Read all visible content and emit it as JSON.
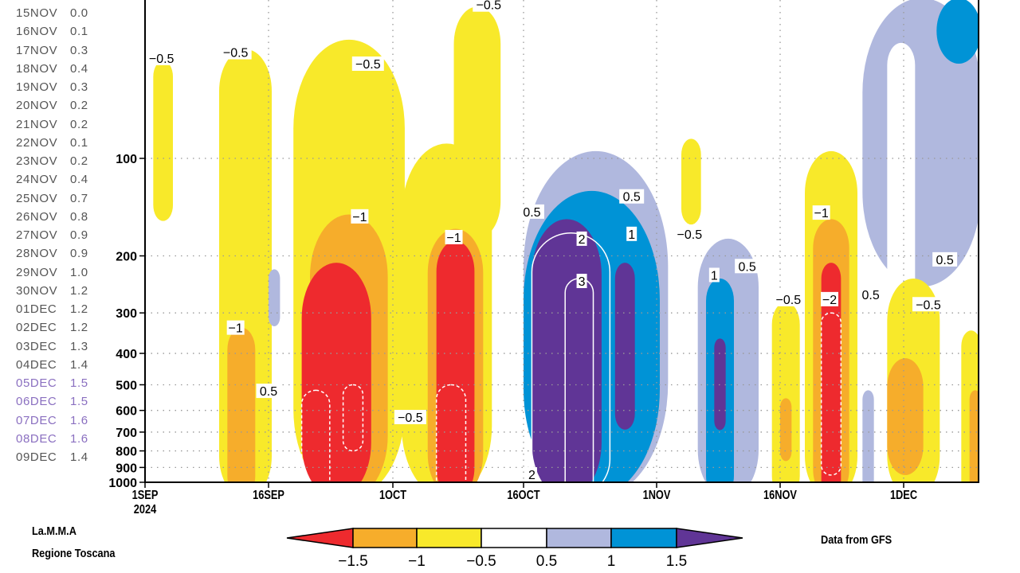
{
  "side_list": [
    {
      "date": "15NOV",
      "value": "0.0",
      "highlighted": false
    },
    {
      "date": "16NOV",
      "value": "0.1",
      "highlighted": false
    },
    {
      "date": "17NOV",
      "value": "0.3",
      "highlighted": false
    },
    {
      "date": "18NOV",
      "value": "0.4",
      "highlighted": false
    },
    {
      "date": "19NOV",
      "value": "0.3",
      "highlighted": false
    },
    {
      "date": "20NOV",
      "value": "0.2",
      "highlighted": false
    },
    {
      "date": "21NOV",
      "value": "0.2",
      "highlighted": false
    },
    {
      "date": "22NOV",
      "value": "0.1",
      "highlighted": false
    },
    {
      "date": "23NOV",
      "value": "0.2",
      "highlighted": false
    },
    {
      "date": "24NOV",
      "value": "0.4",
      "highlighted": false
    },
    {
      "date": "25NOV",
      "value": "0.7",
      "highlighted": false
    },
    {
      "date": "26NOV",
      "value": "0.8",
      "highlighted": false
    },
    {
      "date": "27NOV",
      "value": "0.9",
      "highlighted": false
    },
    {
      "date": "28NOV",
      "value": "0.9",
      "highlighted": false
    },
    {
      "date": "29NOV",
      "value": "1.0",
      "highlighted": false
    },
    {
      "date": "30NOV",
      "value": "1.2",
      "highlighted": false
    },
    {
      "date": "01DEC",
      "value": "1.2",
      "highlighted": false
    },
    {
      "date": "02DEC",
      "value": "1.2",
      "highlighted": false
    },
    {
      "date": "03DEC",
      "value": "1.3",
      "highlighted": false
    },
    {
      "date": "04DEC",
      "value": "1.4",
      "highlighted": false
    },
    {
      "date": "05DEC",
      "value": "1.5",
      "highlighted": true
    },
    {
      "date": "06DEC",
      "value": "1.5",
      "highlighted": true
    },
    {
      "date": "07DEC",
      "value": "1.6",
      "highlighted": true
    },
    {
      "date": "08DEC",
      "value": "1.6",
      "highlighted": true
    },
    {
      "date": "09DEC",
      "value": "1.4",
      "highlighted": false
    }
  ],
  "colors": {
    "highlight": "#8a6fc0",
    "normal": "#555555"
  },
  "footer": {
    "org_line1": "La.M.M.A",
    "org_line2": "Regione Toscana",
    "source": "Data from GFS"
  },
  "chart_data": {
    "type": "heatmap",
    "subtype": "filled-contour time-pressure cross-section",
    "x_axis": {
      "type": "date",
      "range": [
        "2024-09-01",
        "2024-12-10"
      ],
      "ticks": [
        {
          "date": "2024-09-01",
          "label": "1SEP",
          "sublabel": "2024"
        },
        {
          "date": "2024-09-16",
          "label": "16SEP"
        },
        {
          "date": "2024-10-01",
          "label": "1OCT"
        },
        {
          "date": "2024-10-16",
          "label": "16OCT"
        },
        {
          "date": "2024-11-01",
          "label": "1NOV"
        },
        {
          "date": "2024-11-16",
          "label": "16NOV"
        },
        {
          "date": "2024-12-01",
          "label": "1DEC"
        }
      ]
    },
    "y_axis": {
      "type": "log",
      "inverted": true,
      "unit": "hPa",
      "range": [
        32,
        1000
      ],
      "ticks": [
        100,
        200,
        300,
        400,
        500,
        600,
        700,
        800,
        900,
        1000
      ]
    },
    "grid": true,
    "levels": [
      {
        "key": "lt-1.5",
        "color": "#ee2a2e"
      },
      {
        "key": "-1.5..-1",
        "color": "#f6ad2b"
      },
      {
        "key": "-1..-0.5",
        "color": "#f8e92a"
      },
      {
        "key": "-0.5..0.5",
        "color": "#ffffff"
      },
      {
        "key": "0.5..1",
        "color": "#b0b8de"
      },
      {
        "key": "1..1.5",
        "color": "#0093d6"
      },
      {
        "key": "gt1.5",
        "color": "#603596"
      }
    ],
    "colorbar": {
      "labels": [
        "-1.5",
        "-1",
        "-0.5",
        "0.5",
        "1",
        "1.5"
      ],
      "placement": "bottom"
    },
    "regions": [
      {
        "level": "-1..-0.5",
        "start": "2024-09-02",
        "end": "2024-09-04",
        "p_top": 50,
        "p_bottom": 156
      },
      {
        "level": "-1..-0.5",
        "start": "2024-09-10",
        "end": "2024-09-16",
        "p_top": 46,
        "p_bottom": 1000
      },
      {
        "level": "0.5..1",
        "start": "2024-09-16",
        "end": "2024-09-17",
        "p_top": 220,
        "p_bottom": 330
      },
      {
        "level": "-1..-0.5",
        "start": "2024-09-19",
        "end": "2024-10-02",
        "p_top": 43,
        "p_bottom": 1000
      },
      {
        "level": "-1..-0.5",
        "start": "2024-10-02",
        "end": "2024-10-12",
        "p_top": 90,
        "p_bottom": 1000
      },
      {
        "level": "-1..-0.5",
        "start": "2024-10-08",
        "end": "2024-10-13",
        "p_top": 34,
        "p_bottom": 177
      },
      {
        "level": "-1.5..-1",
        "start": "2024-09-11",
        "end": "2024-09-14",
        "p_top": 333,
        "p_bottom": 1000
      },
      {
        "level": "-1.5..-1",
        "start": "2024-09-21",
        "end": "2024-09-30",
        "p_top": 149,
        "p_bottom": 1000
      },
      {
        "level": "-1.5..-1",
        "start": "2024-10-05",
        "end": "2024-10-11",
        "p_top": 165,
        "p_bottom": 1000
      },
      {
        "level": "lt-1.5",
        "start": "2024-09-20",
        "end": "2024-09-28",
        "p_top": 210,
        "p_bottom": 1000
      },
      {
        "level": "lt-1.5",
        "start": "2024-10-06",
        "end": "2024-10-10",
        "p_top": 180,
        "p_bottom": 1000
      },
      {
        "level": "0.5..1",
        "start": "2024-10-16",
        "end": "2024-11-02",
        "p_top": 95,
        "p_bottom": 1000
      },
      {
        "level": "1..1.5",
        "start": "2024-10-16",
        "end": "2024-11-01",
        "p_top": 126,
        "p_bottom": 1000
      },
      {
        "level": "gt1.5",
        "start": "2024-10-17",
        "end": "2024-10-25",
        "p_top": 154,
        "p_bottom": 1000
      },
      {
        "level": "gt1.5",
        "start": "2024-10-27",
        "end": "2024-10-29",
        "p_top": 210,
        "p_bottom": 688
      },
      {
        "level": "-1..-0.5",
        "start": "2024-11-04",
        "end": "2024-11-06",
        "p_top": 87,
        "p_bottom": 160
      },
      {
        "level": "0.5..1",
        "start": "2024-11-06",
        "end": "2024-11-13",
        "p_top": 177,
        "p_bottom": 1000
      },
      {
        "level": "1..1.5",
        "start": "2024-11-07",
        "end": "2024-11-10",
        "p_top": 235,
        "p_bottom": 1000
      },
      {
        "level": "gt1.5",
        "start": "2024-11-08",
        "end": "2024-11-09",
        "p_top": 360,
        "p_bottom": 690
      },
      {
        "level": "-1..-0.5",
        "start": "2024-11-15",
        "end": "2024-11-18",
        "p_top": 278,
        "p_bottom": 1000
      },
      {
        "level": "-1.5..-1",
        "start": "2024-11-16",
        "end": "2024-11-17",
        "p_top": 550,
        "p_bottom": 860
      },
      {
        "level": "-1..-0.5",
        "start": "2024-11-19",
        "end": "2024-11-25",
        "p_top": 95,
        "p_bottom": 1000
      },
      {
        "level": "-1.5..-1",
        "start": "2024-11-20",
        "end": "2024-11-24",
        "p_top": 154,
        "p_bottom": 1000
      },
      {
        "level": "lt-1.5",
        "start": "2024-11-21",
        "end": "2024-11-23",
        "p_top": 210,
        "p_bottom": 1000
      },
      {
        "level": "0.5..1",
        "start": "2024-11-26",
        "end": "2024-12-10",
        "p_top": 32,
        "p_bottom": 249
      },
      {
        "level": "-0.5..0.5",
        "start": "2024-11-29",
        "end": "2024-12-02",
        "p_top": 44,
        "p_bottom": 400
      },
      {
        "level": "1..1.5",
        "start": "2024-12-05",
        "end": "2024-12-10",
        "p_top": 32,
        "p_bottom": 51
      },
      {
        "level": "0.5..1",
        "start": "2024-11-26",
        "end": "2024-11-27",
        "p_top": 520,
        "p_bottom": 1000
      },
      {
        "level": "-1..-0.5",
        "start": "2024-11-29",
        "end": "2024-12-05",
        "p_top": 235,
        "p_bottom": 1000
      },
      {
        "level": "-1.5..-1",
        "start": "2024-11-29",
        "end": "2024-12-03",
        "p_top": 414,
        "p_bottom": 950
      },
      {
        "level": "-1..-0.5",
        "start": "2024-12-08",
        "end": "2024-12-10",
        "p_top": 340,
        "p_bottom": 1000
      },
      {
        "level": "-1.5..-1",
        "start": "2024-12-09",
        "end": "2024-12-10",
        "p_top": 520,
        "p_bottom": 1000
      }
    ],
    "contour_lines": [
      {
        "value": -2,
        "style": "dashed",
        "start": "2024-09-20",
        "end": "2024-09-23",
        "p_top": 520,
        "p_bottom": 1000
      },
      {
        "value": -2,
        "style": "dashed",
        "start": "2024-09-25",
        "end": "2024-09-27",
        "p_top": 500,
        "p_bottom": 800
      },
      {
        "value": -2,
        "style": "dashed",
        "start": "2024-10-06",
        "end": "2024-10-09",
        "p_top": 500,
        "p_bottom": 1000
      },
      {
        "value": -2,
        "style": "dashed",
        "start": "2024-11-21",
        "end": "2024-11-23",
        "p_top": 300,
        "p_bottom": 950
      },
      {
        "value": 2,
        "style": "solid",
        "start": "2024-10-17",
        "end": "2024-10-26",
        "p_top": 170,
        "p_bottom": 1000
      },
      {
        "value": 3,
        "style": "solid",
        "start": "2024-10-21",
        "end": "2024-10-24",
        "p_top": 235,
        "p_bottom": 1000
      }
    ],
    "contour_labels": [
      {
        "text": "-0.5",
        "date": "2024-09-03",
        "p": 49
      },
      {
        "text": "-0.5",
        "date": "2024-09-12",
        "p": 47
      },
      {
        "text": "-0.5",
        "date": "2024-09-28",
        "p": 51
      },
      {
        "text": "-0.5",
        "date": "2024-10-12",
        "p": 33.5
      },
      {
        "text": "-1",
        "date": "2024-09-27",
        "p": 151
      },
      {
        "text": "-1",
        "date": "2024-10-08",
        "p": 175
      },
      {
        "text": "-1",
        "date": "2024-09-12",
        "p": 333
      },
      {
        "text": "0.5",
        "date": "2024-09-16",
        "p": 522
      },
      {
        "text": "-0.5",
        "date": "2024-10-03",
        "p": 629
      },
      {
        "text": "0.5",
        "date": "2024-10-17",
        "p": 146
      },
      {
        "text": "2",
        "date": "2024-10-23",
        "p": 177
      },
      {
        "text": "3",
        "date": "2024-10-23",
        "p": 239
      },
      {
        "text": "0.5",
        "date": "2024-10-29",
        "p": 131
      },
      {
        "text": "1",
        "date": "2024-10-29",
        "p": 171
      },
      {
        "text": "-0.5",
        "date": "2024-11-05",
        "p": 171
      },
      {
        "text": "1",
        "date": "2024-11-08",
        "p": 229
      },
      {
        "text": "0.5",
        "date": "2024-11-12",
        "p": 215
      },
      {
        "text": "-0.5",
        "date": "2024-11-17",
        "p": 272
      },
      {
        "text": "-1",
        "date": "2024-11-21",
        "p": 147
      },
      {
        "text": "-2",
        "date": "2024-11-22",
        "p": 272
      },
      {
        "text": "0.5",
        "date": "2024-11-27",
        "p": 263
      },
      {
        "text": "0.5",
        "date": "2024-12-06",
        "p": 205
      },
      {
        "text": "-0.5",
        "date": "2024-12-04",
        "p": 282
      },
      {
        "text": "2",
        "date": "2024-10-17",
        "p": 945
      }
    ]
  }
}
